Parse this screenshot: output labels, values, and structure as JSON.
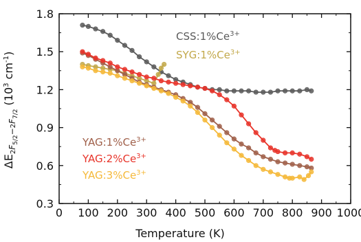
{
  "chart_data": {
    "type": "line",
    "xlabel": "Temperature (K)",
    "ylabel": "ΔE",
    "ylabel_sub1": "2",
    "ylabel_sub2": "F",
    "ylabel_sub3": "5/2",
    "ylabel_mid": "−",
    "ylabel_sub4": "2",
    "ylabel_sub5": "F",
    "ylabel_sub6": "7/2",
    "ylabel_unit_pre": " (10",
    "ylabel_unit_exp1": "3",
    "ylabel_unit_mid": " cm",
    "ylabel_unit_exp2": "-1",
    "ylabel_unit_post": ")",
    "xlim": [
      0,
      1000
    ],
    "ylim": [
      0.3,
      1.8
    ],
    "x_ticks": [
      0,
      100,
      200,
      300,
      400,
      500,
      600,
      700,
      800,
      900,
      1000
    ],
    "x_tick_labels": [
      "0",
      "100",
      "200",
      "300",
      "400",
      "500",
      "600",
      "700",
      "800",
      "900",
      "1000"
    ],
    "y_ticks": [
      0.3,
      0.6,
      0.9,
      1.2,
      1.5,
      1.8
    ],
    "y_tick_labels": [
      "0.3",
      "0.6",
      "0.9",
      "1.2",
      "1.5",
      "1.8"
    ],
    "grid": false,
    "series": [
      {
        "name_base": "CSS:1%Ce",
        "name_sup": "3+",
        "color": "#5a5a5a",
        "x": [
          80,
          100,
          125,
          150,
          175,
          200,
          225,
          250,
          275,
          300,
          325,
          350,
          375,
          400,
          425,
          450,
          475,
          500,
          525,
          550,
          575,
          600,
          625,
          650,
          675,
          700,
          725,
          750,
          775,
          800,
          825,
          850,
          865
        ],
        "y": [
          1.71,
          1.7,
          1.68,
          1.66,
          1.63,
          1.59,
          1.55,
          1.51,
          1.46,
          1.42,
          1.38,
          1.34,
          1.31,
          1.28,
          1.26,
          1.24,
          1.22,
          1.21,
          1.2,
          1.2,
          1.19,
          1.19,
          1.19,
          1.19,
          1.18,
          1.18,
          1.18,
          1.19,
          1.19,
          1.19,
          1.19,
          1.2,
          1.19
        ]
      },
      {
        "name_base": "SYG:1%Ce",
        "name_sup": "3+",
        "color": "#c2a84a",
        "x": [
          80,
          100,
          125,
          150,
          175,
          200,
          225,
          250,
          275,
          300,
          325,
          340,
          350,
          360
        ],
        "y": [
          1.4,
          1.39,
          1.38,
          1.37,
          1.36,
          1.35,
          1.33,
          1.31,
          1.29,
          1.27,
          1.25,
          1.32,
          1.37,
          1.4
        ]
      },
      {
        "name_base": "YAG:1%Ce",
        "name_sup": "3+",
        "color": "#a0604a",
        "x": [
          80,
          100,
          125,
          150,
          175,
          200,
          225,
          250,
          275,
          300,
          325,
          350,
          375,
          400,
          425,
          450,
          475,
          500,
          525,
          550,
          575,
          600,
          625,
          650,
          675,
          700,
          725,
          750,
          775,
          800,
          825,
          850,
          865
        ],
        "y": [
          1.49,
          1.47,
          1.44,
          1.41,
          1.38,
          1.35,
          1.32,
          1.29,
          1.26,
          1.24,
          1.22,
          1.2,
          1.18,
          1.16,
          1.13,
          1.1,
          1.06,
          1.01,
          0.96,
          0.91,
          0.86,
          0.81,
          0.77,
          0.74,
          0.7,
          0.67,
          0.65,
          0.63,
          0.62,
          0.61,
          0.6,
          0.59,
          0.58
        ]
      },
      {
        "name_base": "YAG:2%Ce",
        "name_sup": "3+",
        "color": "#e8342a",
        "x": [
          80,
          100,
          125,
          150,
          175,
          200,
          225,
          250,
          275,
          300,
          325,
          350,
          375,
          400,
          425,
          450,
          475,
          500,
          525,
          550,
          575,
          600,
          625,
          650,
          675,
          700,
          725,
          740,
          750,
          775,
          800,
          825,
          850,
          865
        ],
        "y": [
          1.5,
          1.48,
          1.45,
          1.43,
          1.41,
          1.38,
          1.36,
          1.34,
          1.32,
          1.3,
          1.29,
          1.27,
          1.26,
          1.25,
          1.24,
          1.23,
          1.22,
          1.21,
          1.19,
          1.16,
          1.12,
          1.07,
          1.0,
          0.93,
          0.86,
          0.8,
          0.74,
          0.72,
          0.71,
          0.7,
          0.7,
          0.69,
          0.67,
          0.65
        ]
      },
      {
        "name_base": "YAG:3%Ce",
        "name_sup": "3+",
        "color": "#f5b93a",
        "x": [
          80,
          100,
          125,
          150,
          175,
          200,
          225,
          250,
          275,
          300,
          325,
          350,
          375,
          400,
          425,
          450,
          475,
          500,
          525,
          550,
          575,
          600,
          625,
          650,
          675,
          700,
          725,
          750,
          775,
          790,
          800,
          825,
          840,
          855,
          865
        ],
        "y": [
          1.38,
          1.37,
          1.35,
          1.34,
          1.33,
          1.31,
          1.29,
          1.27,
          1.25,
          1.23,
          1.21,
          1.19,
          1.17,
          1.14,
          1.11,
          1.07,
          1.02,
          0.96,
          0.9,
          0.84,
          0.78,
          0.73,
          0.68,
          0.64,
          0.6,
          0.57,
          0.55,
          0.53,
          0.51,
          0.5,
          0.5,
          0.51,
          0.49,
          0.52,
          0.55
        ]
      }
    ]
  }
}
